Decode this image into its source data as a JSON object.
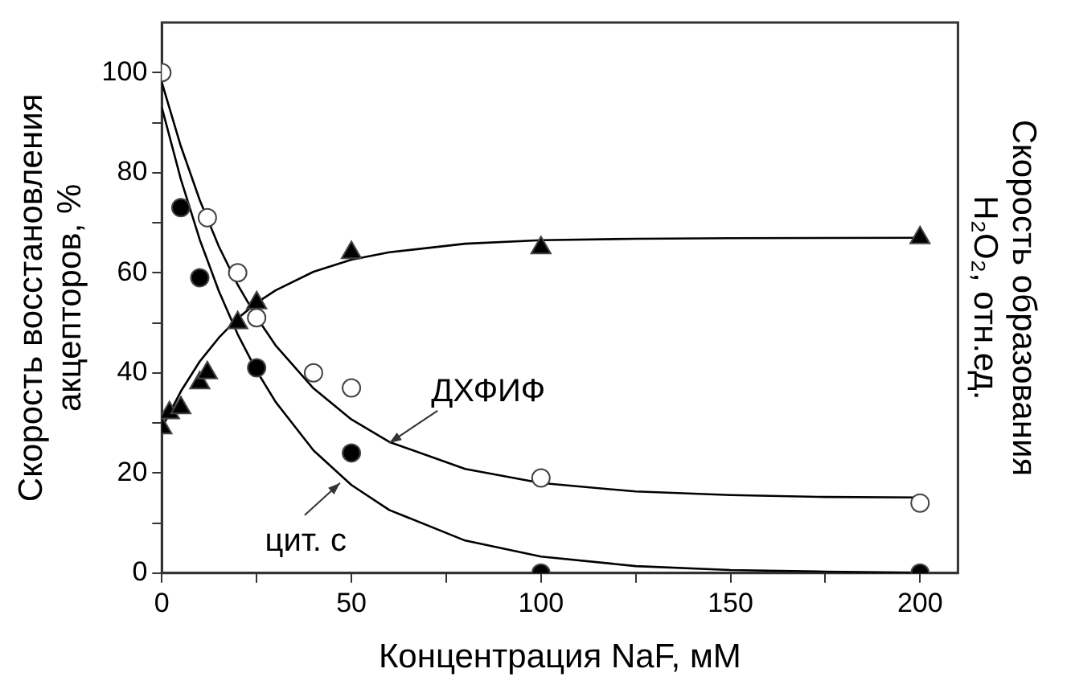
{
  "chart_data": {
    "type": "scatter",
    "xlabel": "Концентрация NaF, мМ",
    "ylabel": "Скорость восстановления\nакцепторов, %",
    "y2label": "Скорость образования\nH₂O₂, отн.ед.",
    "xlim": [
      0,
      210
    ],
    "ylim": [
      0,
      110
    ],
    "xticks": [
      0,
      {
        "value": 25,
        "label": null
      },
      50,
      {
        "value": 75,
        "label": null
      },
      100,
      {
        "value": 125,
        "label": null
      },
      150,
      {
        "value": 175,
        "label": null
      },
      200
    ],
    "yticks": [
      0,
      {
        "value": 10,
        "label": null
      },
      20,
      {
        "value": 30,
        "label": null
      },
      40,
      {
        "value": 50,
        "label": null
      },
      60,
      {
        "value": 70,
        "label": null
      },
      80,
      {
        "value": 90,
        "label": null
      },
      100
    ],
    "grid": false,
    "legend": false,
    "series": [
      {
        "type": "line",
        "marker": "none",
        "color": "#000000",
        "x": [
          0,
          5,
          10,
          15,
          20,
          25,
          30,
          40,
          50,
          60,
          80,
          100,
          125,
          150,
          175,
          200
        ],
        "values": [
          98,
          85.3,
          74.5,
          65.3,
          57.6,
          51.1,
          45.5,
          36.9,
          30.7,
          26.2,
          20.8,
          18.0,
          16.3,
          15.6,
          15.2,
          15.1
        ]
      },
      {
        "type": "line",
        "marker": "none",
        "color": "#000000",
        "x": [
          0,
          5,
          10,
          15,
          20,
          25,
          30,
          40,
          50,
          60,
          80,
          100,
          125,
          150,
          175,
          200
        ],
        "values": [
          93,
          78.7,
          66.6,
          56.4,
          47.7,
          40.4,
          34.2,
          24.5,
          17.6,
          12.6,
          6.5,
          3.3,
          1.4,
          0.6,
          0.3,
          0.1
        ]
      },
      {
        "type": "line",
        "marker": "none",
        "color": "#000000",
        "x": [
          0,
          5,
          10,
          15,
          20,
          25,
          30,
          40,
          50,
          60,
          80,
          100,
          125,
          150,
          200
        ],
        "values": [
          29,
          36.3,
          42.3,
          47.0,
          50.9,
          54.0,
          56.5,
          60.2,
          62.6,
          64.1,
          65.8,
          66.5,
          66.8,
          66.9,
          67.0
        ]
      },
      {
        "marker": "circle",
        "color": "#ffffff",
        "x": [
          0,
          12,
          20,
          25,
          40,
          50,
          100,
          200
        ],
        "values": [
          100,
          71,
          60,
          51,
          40,
          37,
          19,
          14
        ]
      },
      {
        "marker": "circle",
        "color": "#000000",
        "x": [
          5,
          10,
          25,
          50,
          100,
          200
        ],
        "values": [
          73,
          59,
          41,
          24,
          0,
          0
        ]
      },
      {
        "marker": "triangle",
        "color": "#000000",
        "x": [
          0,
          2,
          5,
          10,
          12,
          20,
          25,
          50,
          100,
          200
        ],
        "values": [
          29,
          32,
          33,
          38,
          40,
          50,
          54,
          64,
          65,
          67
        ]
      }
    ],
    "annotations": [
      {
        "text": "ДХФИФ",
        "x": 60,
        "y": 26
      },
      {
        "text": "цит. c",
        "x": 47,
        "y": 18
      }
    ]
  }
}
